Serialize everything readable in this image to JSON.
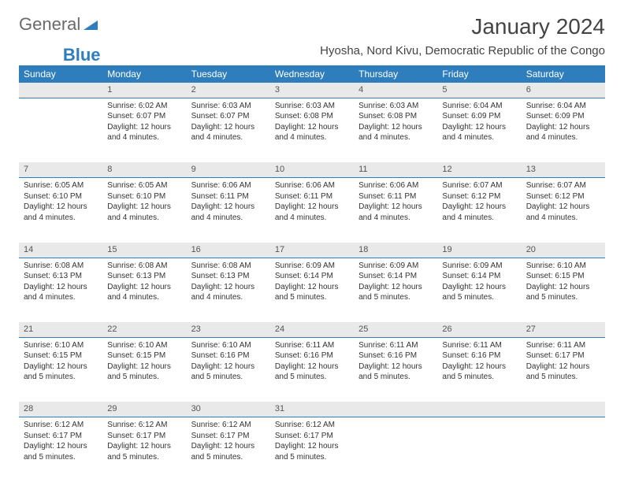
{
  "logo": {
    "part1": "General",
    "part2": "Blue"
  },
  "title": "January 2024",
  "subtitle": "Hyosha, Nord Kivu, Democratic Republic of the Congo",
  "colors": {
    "header_bg": "#2e7ebd",
    "daynum_bg": "#e9e9e9",
    "text": "#333333"
  },
  "day_headers": [
    "Sunday",
    "Monday",
    "Tuesday",
    "Wednesday",
    "Thursday",
    "Friday",
    "Saturday"
  ],
  "weeks": [
    {
      "nums": [
        "",
        "1",
        "2",
        "3",
        "4",
        "5",
        "6"
      ],
      "cells": [
        null,
        {
          "sunrise": "Sunrise: 6:02 AM",
          "sunset": "Sunset: 6:07 PM",
          "day1": "Daylight: 12 hours",
          "day2": "and 4 minutes."
        },
        {
          "sunrise": "Sunrise: 6:03 AM",
          "sunset": "Sunset: 6:07 PM",
          "day1": "Daylight: 12 hours",
          "day2": "and 4 minutes."
        },
        {
          "sunrise": "Sunrise: 6:03 AM",
          "sunset": "Sunset: 6:08 PM",
          "day1": "Daylight: 12 hours",
          "day2": "and 4 minutes."
        },
        {
          "sunrise": "Sunrise: 6:03 AM",
          "sunset": "Sunset: 6:08 PM",
          "day1": "Daylight: 12 hours",
          "day2": "and 4 minutes."
        },
        {
          "sunrise": "Sunrise: 6:04 AM",
          "sunset": "Sunset: 6:09 PM",
          "day1": "Daylight: 12 hours",
          "day2": "and 4 minutes."
        },
        {
          "sunrise": "Sunrise: 6:04 AM",
          "sunset": "Sunset: 6:09 PM",
          "day1": "Daylight: 12 hours",
          "day2": "and 4 minutes."
        }
      ]
    },
    {
      "nums": [
        "7",
        "8",
        "9",
        "10",
        "11",
        "12",
        "13"
      ],
      "cells": [
        {
          "sunrise": "Sunrise: 6:05 AM",
          "sunset": "Sunset: 6:10 PM",
          "day1": "Daylight: 12 hours",
          "day2": "and 4 minutes."
        },
        {
          "sunrise": "Sunrise: 6:05 AM",
          "sunset": "Sunset: 6:10 PM",
          "day1": "Daylight: 12 hours",
          "day2": "and 4 minutes."
        },
        {
          "sunrise": "Sunrise: 6:06 AM",
          "sunset": "Sunset: 6:11 PM",
          "day1": "Daylight: 12 hours",
          "day2": "and 4 minutes."
        },
        {
          "sunrise": "Sunrise: 6:06 AM",
          "sunset": "Sunset: 6:11 PM",
          "day1": "Daylight: 12 hours",
          "day2": "and 4 minutes."
        },
        {
          "sunrise": "Sunrise: 6:06 AM",
          "sunset": "Sunset: 6:11 PM",
          "day1": "Daylight: 12 hours",
          "day2": "and 4 minutes."
        },
        {
          "sunrise": "Sunrise: 6:07 AM",
          "sunset": "Sunset: 6:12 PM",
          "day1": "Daylight: 12 hours",
          "day2": "and 4 minutes."
        },
        {
          "sunrise": "Sunrise: 6:07 AM",
          "sunset": "Sunset: 6:12 PM",
          "day1": "Daylight: 12 hours",
          "day2": "and 4 minutes."
        }
      ]
    },
    {
      "nums": [
        "14",
        "15",
        "16",
        "17",
        "18",
        "19",
        "20"
      ],
      "cells": [
        {
          "sunrise": "Sunrise: 6:08 AM",
          "sunset": "Sunset: 6:13 PM",
          "day1": "Daylight: 12 hours",
          "day2": "and 4 minutes."
        },
        {
          "sunrise": "Sunrise: 6:08 AM",
          "sunset": "Sunset: 6:13 PM",
          "day1": "Daylight: 12 hours",
          "day2": "and 4 minutes."
        },
        {
          "sunrise": "Sunrise: 6:08 AM",
          "sunset": "Sunset: 6:13 PM",
          "day1": "Daylight: 12 hours",
          "day2": "and 4 minutes."
        },
        {
          "sunrise": "Sunrise: 6:09 AM",
          "sunset": "Sunset: 6:14 PM",
          "day1": "Daylight: 12 hours",
          "day2": "and 5 minutes."
        },
        {
          "sunrise": "Sunrise: 6:09 AM",
          "sunset": "Sunset: 6:14 PM",
          "day1": "Daylight: 12 hours",
          "day2": "and 5 minutes."
        },
        {
          "sunrise": "Sunrise: 6:09 AM",
          "sunset": "Sunset: 6:14 PM",
          "day1": "Daylight: 12 hours",
          "day2": "and 5 minutes."
        },
        {
          "sunrise": "Sunrise: 6:10 AM",
          "sunset": "Sunset: 6:15 PM",
          "day1": "Daylight: 12 hours",
          "day2": "and 5 minutes."
        }
      ]
    },
    {
      "nums": [
        "21",
        "22",
        "23",
        "24",
        "25",
        "26",
        "27"
      ],
      "cells": [
        {
          "sunrise": "Sunrise: 6:10 AM",
          "sunset": "Sunset: 6:15 PM",
          "day1": "Daylight: 12 hours",
          "day2": "and 5 minutes."
        },
        {
          "sunrise": "Sunrise: 6:10 AM",
          "sunset": "Sunset: 6:15 PM",
          "day1": "Daylight: 12 hours",
          "day2": "and 5 minutes."
        },
        {
          "sunrise": "Sunrise: 6:10 AM",
          "sunset": "Sunset: 6:16 PM",
          "day1": "Daylight: 12 hours",
          "day2": "and 5 minutes."
        },
        {
          "sunrise": "Sunrise: 6:11 AM",
          "sunset": "Sunset: 6:16 PM",
          "day1": "Daylight: 12 hours",
          "day2": "and 5 minutes."
        },
        {
          "sunrise": "Sunrise: 6:11 AM",
          "sunset": "Sunset: 6:16 PM",
          "day1": "Daylight: 12 hours",
          "day2": "and 5 minutes."
        },
        {
          "sunrise": "Sunrise: 6:11 AM",
          "sunset": "Sunset: 6:16 PM",
          "day1": "Daylight: 12 hours",
          "day2": "and 5 minutes."
        },
        {
          "sunrise": "Sunrise: 6:11 AM",
          "sunset": "Sunset: 6:17 PM",
          "day1": "Daylight: 12 hours",
          "day2": "and 5 minutes."
        }
      ]
    },
    {
      "nums": [
        "28",
        "29",
        "30",
        "31",
        "",
        "",
        ""
      ],
      "cells": [
        {
          "sunrise": "Sunrise: 6:12 AM",
          "sunset": "Sunset: 6:17 PM",
          "day1": "Daylight: 12 hours",
          "day2": "and 5 minutes."
        },
        {
          "sunrise": "Sunrise: 6:12 AM",
          "sunset": "Sunset: 6:17 PM",
          "day1": "Daylight: 12 hours",
          "day2": "and 5 minutes."
        },
        {
          "sunrise": "Sunrise: 6:12 AM",
          "sunset": "Sunset: 6:17 PM",
          "day1": "Daylight: 12 hours",
          "day2": "and 5 minutes."
        },
        {
          "sunrise": "Sunrise: 6:12 AM",
          "sunset": "Sunset: 6:17 PM",
          "day1": "Daylight: 12 hours",
          "day2": "and 5 minutes."
        },
        null,
        null,
        null
      ]
    }
  ]
}
